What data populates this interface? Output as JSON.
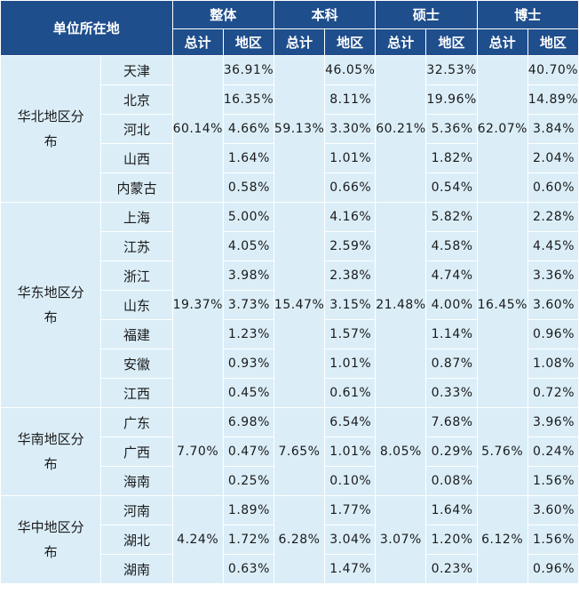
{
  "header": {
    "location": "单位所在地",
    "groups": [
      "整体",
      "本科",
      "硕士",
      "博士"
    ],
    "sub_total": "总计",
    "sub_area": "地区"
  },
  "regions": [
    {
      "name": "华北地区分布",
      "totals": [
        "60.14%",
        "59.13%",
        "60.21%",
        "62.07%"
      ],
      "rows": [
        {
          "province": "天津",
          "values": [
            "36.91%",
            "46.05%",
            "32.53%",
            "40.70%"
          ]
        },
        {
          "province": "北京",
          "values": [
            "16.35%",
            "8.11%",
            "19.96%",
            "14.89%"
          ]
        },
        {
          "province": "河北",
          "values": [
            "4.66%",
            "3.30%",
            "5.36%",
            "3.84%"
          ]
        },
        {
          "province": "山西",
          "values": [
            "1.64%",
            "1.01%",
            "1.82%",
            "2.04%"
          ]
        },
        {
          "province": "内蒙古",
          "values": [
            "0.58%",
            "0.66%",
            "0.54%",
            "0.60%"
          ]
        }
      ]
    },
    {
      "name": "华东地区分布",
      "totals": [
        "19.37%",
        "15.47%",
        "21.48%",
        "16.45%"
      ],
      "rows": [
        {
          "province": "上海",
          "values": [
            "5.00%",
            "4.16%",
            "5.82%",
            "2.28%"
          ]
        },
        {
          "province": "江苏",
          "values": [
            "4.05%",
            "2.59%",
            "4.58%",
            "4.45%"
          ]
        },
        {
          "province": "浙江",
          "values": [
            "3.98%",
            "2.38%",
            "4.74%",
            "3.36%"
          ]
        },
        {
          "province": "山东",
          "values": [
            "3.73%",
            "3.15%",
            "4.00%",
            "3.60%"
          ]
        },
        {
          "province": "福建",
          "values": [
            "1.23%",
            "1.57%",
            "1.14%",
            "0.96%"
          ]
        },
        {
          "province": "安徽",
          "values": [
            "0.93%",
            "1.01%",
            "0.87%",
            "1.08%"
          ]
        },
        {
          "province": "江西",
          "values": [
            "0.45%",
            "0.61%",
            "0.33%",
            "0.72%"
          ]
        }
      ]
    },
    {
      "name": "华南地区分布",
      "totals": [
        "7.70%",
        "7.65%",
        "8.05%",
        "5.76%"
      ],
      "rows": [
        {
          "province": "广东",
          "values": [
            "6.98%",
            "6.54%",
            "7.68%",
            "3.96%"
          ]
        },
        {
          "province": "广西",
          "values": [
            "0.47%",
            "1.01%",
            "0.29%",
            "0.24%"
          ]
        },
        {
          "province": "海南",
          "values": [
            "0.25%",
            "0.10%",
            "0.08%",
            "1.56%"
          ]
        }
      ]
    },
    {
      "name": "华中地区分布",
      "totals": [
        "4.24%",
        "6.28%",
        "3.07%",
        "6.12%"
      ],
      "rows": [
        {
          "province": "河南",
          "values": [
            "1.89%",
            "1.77%",
            "1.64%",
            "3.60%"
          ]
        },
        {
          "province": "湖北",
          "values": [
            "1.72%",
            "3.04%",
            "1.20%",
            "1.56%"
          ]
        },
        {
          "province": "湖南",
          "values": [
            "0.63%",
            "1.47%",
            "0.23%",
            "0.96%"
          ]
        }
      ]
    }
  ]
}
